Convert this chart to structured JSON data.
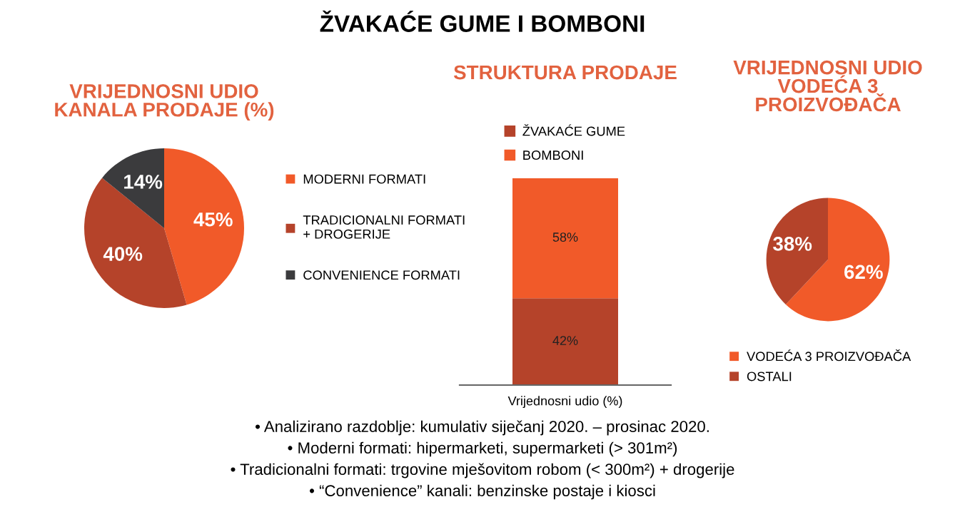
{
  "chart_data": [
    {
      "type": "pie",
      "title": "VRIJEDNOSNI UDIO\nKANALA PRODAJE (%)",
      "categories": [
        "MODERNI FORMATI",
        "TRADICIONALNI FORMATI\n+ DROGERIJE",
        "CONVENIENCE FORMATI"
      ],
      "values": [
        45,
        40,
        14
      ],
      "colors": [
        "#f15a29",
        "#b5432a",
        "#3b3b3d"
      ],
      "value_labels": [
        "45%",
        "40%",
        "14%"
      ],
      "legend": "right",
      "annotations": [
        "ŽVAKAĆE GUME I BOMBONI",
        "• Analizirano razdoblje: kumulativ siječanj 2020. – prosinac 2020.",
        "• Moderni formati: hipermarketi, supermarketi (> 301m²)",
        "• Tradicionalni formati: trgovine mješovitom robom (< 300m²) + drogerije",
        "• “Convenience” kanali: benzinske postaje i kiosci"
      ]
    },
    {
      "type": "bar",
      "stacked": true,
      "title": "STRUKTURA PRODAJE",
      "xlabel": "Vrijednosni udio (%)",
      "categories": [
        null
      ],
      "ylim": [
        0,
        100
      ],
      "legend": "top",
      "series": [
        {
          "name": "ŽVAKAĆE GUME",
          "color": "#b5432a",
          "values": [
            42
          ],
          "value_labels": [
            "42%"
          ]
        },
        {
          "name": "BOMBONI",
          "color": "#f15a29",
          "values": [
            58
          ],
          "value_labels": [
            "58%"
          ]
        }
      ]
    },
    {
      "type": "pie",
      "title": "VRIJEDNOSNI UDIO\nVODEĆA 3\nPROIZVOĐAČA",
      "categories": [
        "VODEĆA 3 PROIZVOĐAČA",
        "OSTALI"
      ],
      "values": [
        62,
        38
      ],
      "colors": [
        "#f15a29",
        "#b5432a"
      ],
      "value_labels": [
        "62%",
        "38%"
      ],
      "legend": "bottom"
    }
  ]
}
